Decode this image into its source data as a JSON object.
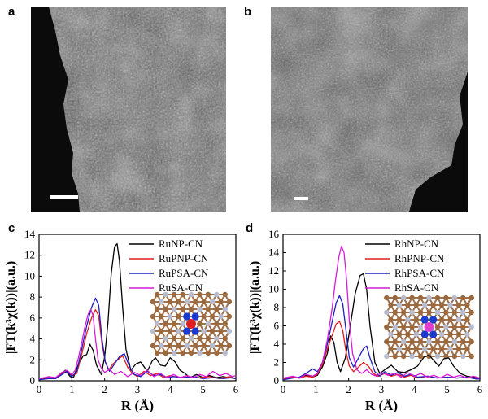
{
  "panels": {
    "a": "a",
    "b": "b",
    "c": "c",
    "d": "d"
  },
  "micrographs": [
    {
      "id": "a"
    },
    {
      "id": "b"
    }
  ],
  "chart_data": [
    {
      "type": "line",
      "panel": "c",
      "xlabel": "R (Å)",
      "ylabel": "|FT(k³χ(k))|(a.u.)",
      "xlim": [
        0,
        6
      ],
      "ylim": [
        0,
        14
      ],
      "xticks": [
        0,
        1,
        2,
        3,
        4,
        5,
        6
      ],
      "yticks": [
        0,
        2,
        4,
        6,
        8,
        10,
        12,
        14
      ],
      "legend_position": "top-right",
      "series": [
        {
          "name": "RuNP-CN",
          "color": "#000000",
          "x": [
            0,
            0.3,
            0.5,
            0.7,
            0.8,
            0.95,
            1.05,
            1.2,
            1.35,
            1.45,
            1.55,
            1.65,
            1.75,
            1.9,
            2.0,
            2.1,
            2.2,
            2.3,
            2.38,
            2.45,
            2.55,
            2.65,
            2.8,
            2.95,
            3.1,
            3.3,
            3.45,
            3.55,
            3.7,
            3.85,
            4.0,
            4.15,
            4.3,
            4.45,
            4.6,
            4.8,
            5.0,
            5.2,
            5.4,
            5.6,
            5.8,
            6.0
          ],
          "y": [
            0.1,
            0.3,
            0.2,
            0.7,
            1.0,
            0.4,
            0.3,
            1.6,
            2.4,
            2.5,
            3.5,
            2.9,
            1.5,
            0.6,
            2.3,
            5.5,
            10.2,
            12.8,
            13.1,
            11.5,
            7.0,
            3.0,
            1.0,
            1.6,
            1.8,
            0.9,
            1.9,
            2.2,
            1.5,
            1.4,
            2.2,
            1.8,
            1.0,
            0.7,
            0.3,
            0.6,
            0.3,
            0.5,
            0.3,
            0.4,
            0.3,
            0.2
          ]
        },
        {
          "name": "RuPNP-CN",
          "color": "#e31a1c",
          "x": [
            0,
            0.3,
            0.5,
            0.7,
            0.85,
            1.0,
            1.15,
            1.3,
            1.45,
            1.6,
            1.72,
            1.82,
            1.92,
            2.02,
            2.12,
            2.25,
            2.4,
            2.55,
            2.7,
            2.85,
            3.0,
            3.2,
            3.4,
            3.6,
            3.8,
            4.0,
            4.3,
            4.6,
            4.9,
            5.2,
            5.5,
            5.8,
            6.0
          ],
          "y": [
            0.1,
            0.3,
            0.3,
            0.7,
            0.9,
            0.5,
            0.7,
            2.5,
            4.5,
            6.0,
            6.8,
            6.2,
            3.5,
            1.8,
            1.0,
            1.6,
            2.0,
            2.4,
            1.3,
            0.7,
            0.4,
            0.9,
            0.5,
            0.7,
            0.3,
            0.5,
            0.3,
            0.4,
            0.3,
            0.4,
            0.2,
            0.4,
            0.2
          ]
        },
        {
          "name": "RuPSA-CN",
          "color": "#1f1fbf",
          "x": [
            0,
            0.3,
            0.5,
            0.7,
            0.85,
            1.0,
            1.15,
            1.3,
            1.45,
            1.6,
            1.72,
            1.82,
            1.92,
            2.02,
            2.15,
            2.3,
            2.45,
            2.6,
            2.75,
            2.9,
            3.1,
            3.3,
            3.5,
            3.7,
            3.9,
            4.1,
            4.4,
            4.7,
            5.0,
            5.3,
            5.6,
            5.9,
            6.0
          ],
          "y": [
            0.1,
            0.2,
            0.2,
            0.6,
            0.9,
            0.4,
            0.9,
            3.0,
            5.2,
            7.0,
            7.9,
            7.2,
            4.0,
            1.8,
            0.9,
            1.6,
            2.3,
            2.6,
            1.4,
            0.6,
            0.4,
            0.9,
            0.5,
            0.6,
            0.3,
            0.4,
            0.3,
            0.4,
            0.2,
            0.3,
            0.2,
            0.3,
            0.2
          ]
        },
        {
          "name": "RuSA-CN",
          "color": "#d61ad6",
          "x": [
            0,
            0.3,
            0.5,
            0.7,
            0.85,
            1.0,
            1.1,
            1.2,
            1.3,
            1.4,
            1.5,
            1.58,
            1.65,
            1.72,
            1.8,
            1.9,
            2.0,
            2.15,
            2.3,
            2.5,
            2.7,
            2.9,
            3.1,
            3.3,
            3.5,
            3.7,
            3.9,
            4.1,
            4.3,
            4.5,
            4.7,
            4.9,
            5.1,
            5.3,
            5.5,
            5.7,
            5.9,
            6.0
          ],
          "y": [
            0.2,
            0.4,
            0.3,
            0.8,
            1.0,
            0.6,
            1.0,
            2.2,
            3.6,
            5.2,
            6.4,
            6.8,
            6.2,
            4.0,
            2.0,
            1.2,
            0.8,
            1.1,
            0.6,
            0.9,
            0.4,
            0.8,
            0.5,
            1.0,
            0.4,
            0.7,
            0.3,
            0.6,
            0.3,
            0.5,
            0.3,
            0.6,
            0.4,
            0.9,
            0.5,
            0.7,
            0.4,
            0.5
          ]
        }
      ]
    },
    {
      "type": "line",
      "panel": "d",
      "xlabel": "R (Å)",
      "ylabel": "|FT(k³χ(k))|(a.u.)",
      "xlim": [
        0,
        6
      ],
      "ylim": [
        0,
        16
      ],
      "xticks": [
        0,
        1,
        2,
        3,
        4,
        5,
        6
      ],
      "yticks": [
        0,
        2,
        4,
        6,
        8,
        10,
        12,
        14,
        16
      ],
      "legend_position": "top-right",
      "series": [
        {
          "name": "RhNP-CN",
          "color": "#000000",
          "x": [
            0,
            0.3,
            0.5,
            0.7,
            0.9,
            1.05,
            1.2,
            1.35,
            1.45,
            1.55,
            1.65,
            1.75,
            1.9,
            2.05,
            2.2,
            2.35,
            2.45,
            2.55,
            2.65,
            2.8,
            2.95,
            3.1,
            3.3,
            3.5,
            3.7,
            3.9,
            4.1,
            4.3,
            4.45,
            4.6,
            4.75,
            4.9,
            5.05,
            5.2,
            5.4,
            5.6,
            5.8,
            6.0
          ],
          "y": [
            0.2,
            0.4,
            0.3,
            0.6,
            0.4,
            0.6,
            1.5,
            3.0,
            4.9,
            4.2,
            2.0,
            1.0,
            2.5,
            6.0,
            9.5,
            11.5,
            11.7,
            10.0,
            6.0,
            2.0,
            0.8,
            1.2,
            1.7,
            1.0,
            0.9,
            1.2,
            1.6,
            2.6,
            2.8,
            2.2,
            1.6,
            2.4,
            2.5,
            1.6,
            0.8,
            0.5,
            0.4,
            0.3
          ]
        },
        {
          "name": "RhPNP-CN",
          "color": "#e31a1c",
          "x": [
            0,
            0.3,
            0.5,
            0.7,
            0.9,
            1.05,
            1.2,
            1.35,
            1.5,
            1.62,
            1.72,
            1.82,
            1.92,
            2.02,
            2.15,
            2.3,
            2.45,
            2.6,
            2.75,
            2.9,
            3.1,
            3.3,
            3.5,
            3.7,
            3.9,
            4.1,
            4.4,
            4.7,
            5.0,
            5.3,
            5.6,
            5.9,
            6.0
          ],
          "y": [
            0.2,
            0.4,
            0.3,
            0.5,
            0.4,
            0.7,
            1.8,
            3.5,
            5.0,
            6.2,
            6.5,
            5.5,
            3.2,
            1.6,
            1.0,
            1.5,
            2.0,
            1.6,
            0.8,
            0.5,
            0.8,
            0.5,
            0.7,
            0.4,
            0.6,
            0.3,
            0.5,
            0.3,
            0.4,
            0.3,
            0.4,
            0.2,
            0.2
          ]
        },
        {
          "name": "RhPSA-CN",
          "color": "#1f1fbf",
          "x": [
            0,
            0.3,
            0.5,
            0.7,
            0.9,
            1.05,
            1.2,
            1.35,
            1.5,
            1.62,
            1.72,
            1.82,
            1.92,
            2.02,
            2.15,
            2.3,
            2.45,
            2.55,
            2.65,
            2.8,
            2.95,
            3.1,
            3.3,
            3.5,
            3.7,
            3.9,
            4.1,
            4.4,
            4.7,
            5.0,
            5.3,
            5.6,
            5.9,
            6.0
          ],
          "y": [
            0.1,
            0.3,
            0.4,
            0.8,
            1.3,
            1.0,
            2.0,
            4.0,
            6.5,
            8.5,
            9.3,
            8.4,
            5.5,
            2.5,
            1.5,
            2.5,
            3.5,
            3.8,
            2.5,
            1.0,
            0.5,
            1.0,
            0.6,
            0.9,
            0.5,
            0.7,
            0.4,
            0.5,
            0.3,
            0.4,
            0.3,
            0.4,
            0.2,
            0.2
          ]
        },
        {
          "name": "RhSA-CN",
          "color": "#d61ad6",
          "x": [
            0,
            0.3,
            0.5,
            0.7,
            0.9,
            1.05,
            1.2,
            1.35,
            1.5,
            1.6,
            1.7,
            1.78,
            1.86,
            1.94,
            2.02,
            2.12,
            2.25,
            2.4,
            2.55,
            2.7,
            2.85,
            3.0,
            3.2,
            3.4,
            3.6,
            3.8,
            4.0,
            4.2,
            4.4,
            4.6,
            4.8,
            5.0,
            5.2,
            5.4,
            5.6,
            5.8,
            6.0
          ],
          "y": [
            0.3,
            0.5,
            0.3,
            0.7,
            0.5,
            0.8,
            2.0,
            4.5,
            8.0,
            11.0,
            13.5,
            14.7,
            14.0,
            11.0,
            6.5,
            3.0,
            1.2,
            0.8,
            1.2,
            0.7,
            0.5,
            0.9,
            0.6,
            0.8,
            0.4,
            0.9,
            0.5,
            0.8,
            0.4,
            0.6,
            0.3,
            0.7,
            0.4,
            0.6,
            0.3,
            0.5,
            0.3
          ]
        }
      ]
    }
  ]
}
